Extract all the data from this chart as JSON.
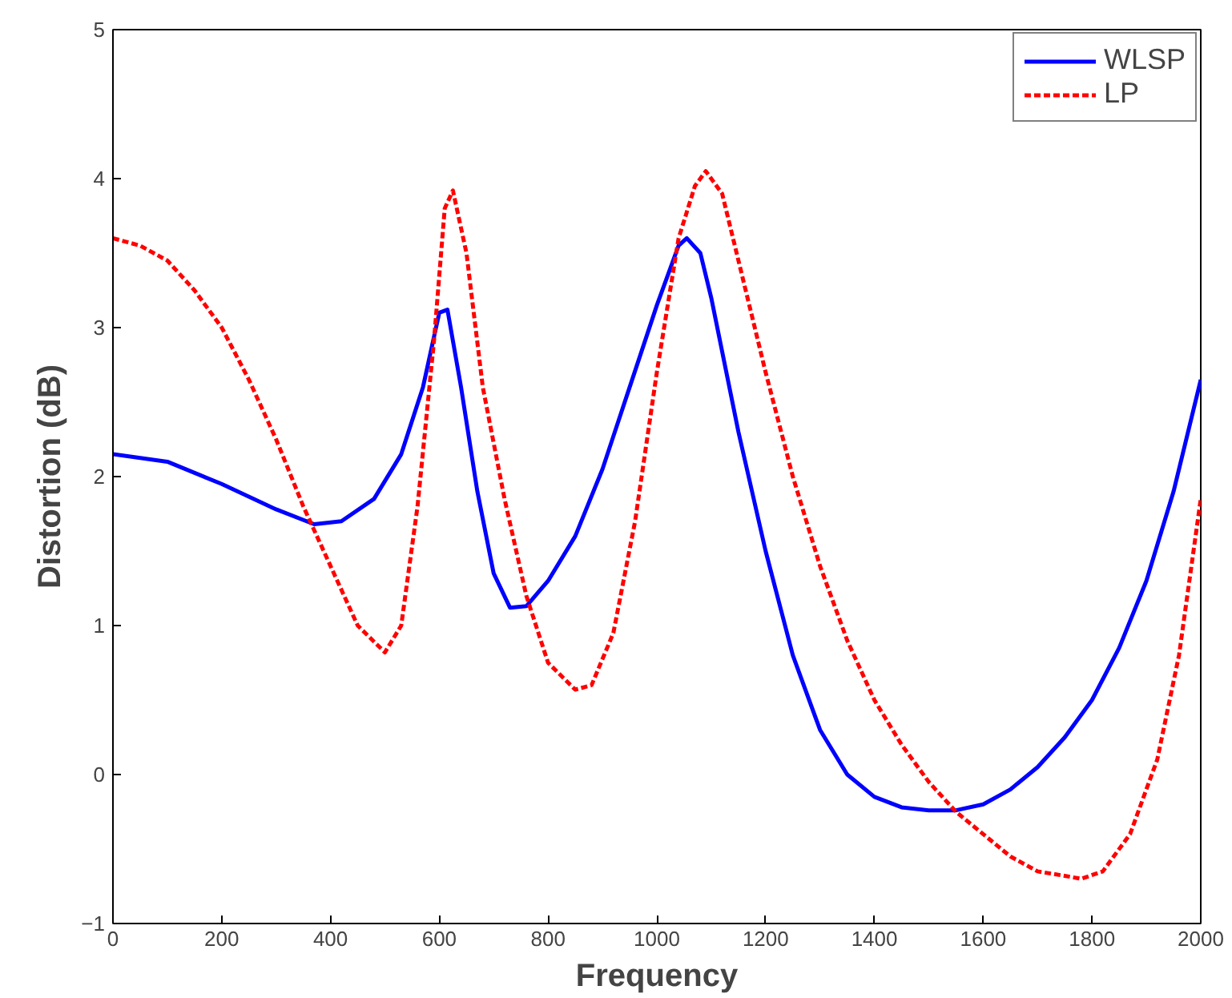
{
  "chart_data": {
    "type": "line",
    "xlabel": "Frequency",
    "ylabel": "Distortion (dB)",
    "xlim": [
      0,
      2000
    ],
    "ylim": [
      -1,
      5
    ],
    "xticks": [
      0,
      200,
      400,
      600,
      800,
      1000,
      1200,
      1400,
      1600,
      1800,
      2000
    ],
    "yticks": [
      -1,
      0,
      1,
      2,
      3,
      4,
      5
    ],
    "grid": false,
    "legend": "top right",
    "series": [
      {
        "name": "WLSP",
        "color": "#0000ff",
        "line_style": "solid",
        "x": [
          0,
          100,
          200,
          300,
          370,
          420,
          480,
          530,
          570,
          600,
          615,
          640,
          670,
          700,
          730,
          760,
          800,
          850,
          900,
          950,
          1000,
          1040,
          1055,
          1080,
          1100,
          1150,
          1200,
          1250,
          1300,
          1350,
          1400,
          1450,
          1500,
          1550,
          1600,
          1650,
          1700,
          1750,
          1800,
          1850,
          1900,
          1950,
          2000
        ],
        "values": [
          2.15,
          2.1,
          1.95,
          1.78,
          1.68,
          1.7,
          1.85,
          2.15,
          2.6,
          3.1,
          3.12,
          2.6,
          1.9,
          1.35,
          1.12,
          1.13,
          1.3,
          1.6,
          2.05,
          2.6,
          3.15,
          3.55,
          3.6,
          3.5,
          3.2,
          2.3,
          1.5,
          0.8,
          0.3,
          0.0,
          -0.15,
          -0.22,
          -0.24,
          -0.24,
          -0.2,
          -0.1,
          0.05,
          0.25,
          0.5,
          0.85,
          1.3,
          1.9,
          2.65
        ]
      },
      {
        "name": "LP",
        "color": "#ff0000",
        "line_style": "dashed",
        "x": [
          0,
          50,
          100,
          150,
          200,
          250,
          300,
          350,
          400,
          450,
          500,
          530,
          560,
          590,
          610,
          625,
          650,
          680,
          720,
          760,
          800,
          850,
          880,
          920,
          960,
          1000,
          1040,
          1070,
          1090,
          1120,
          1160,
          1200,
          1250,
          1300,
          1350,
          1400,
          1450,
          1500,
          1550,
          1600,
          1650,
          1700,
          1750,
          1780,
          1820,
          1870,
          1920,
          1960,
          2000
        ],
        "values": [
          3.6,
          3.55,
          3.45,
          3.25,
          3.0,
          2.65,
          2.25,
          1.8,
          1.4,
          1.0,
          0.82,
          1.0,
          1.8,
          2.9,
          3.8,
          3.92,
          3.5,
          2.6,
          1.85,
          1.2,
          0.75,
          0.57,
          0.6,
          0.95,
          1.7,
          2.7,
          3.6,
          3.95,
          4.05,
          3.9,
          3.3,
          2.7,
          2.0,
          1.4,
          0.9,
          0.5,
          0.2,
          -0.05,
          -0.25,
          -0.4,
          -0.55,
          -0.65,
          -0.68,
          -0.7,
          -0.65,
          -0.4,
          0.1,
          0.8,
          1.85
        ]
      }
    ]
  }
}
